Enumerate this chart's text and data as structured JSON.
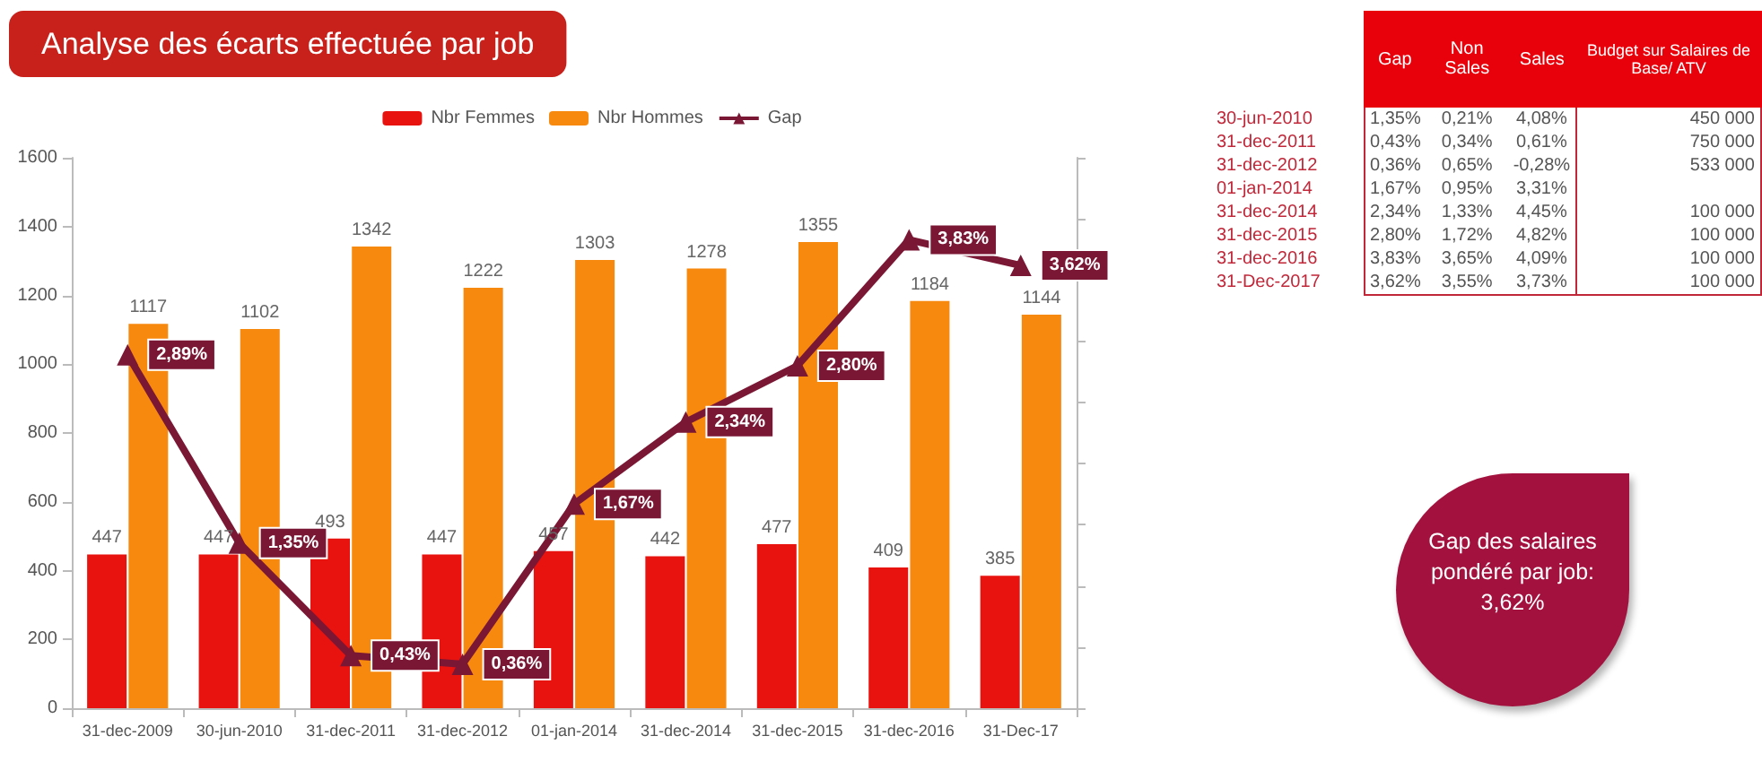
{
  "chart_data": [
    {
      "type": "bar",
      "title": "Analyse des écarts effectuée par job",
      "categories": [
        "31-dec-2009",
        "30-jun-2010",
        "31-dec-2011",
        "31-dec-2012",
        "01-jan-2014",
        "31-dec-2014",
        "31-dec-2015",
        "31-dec-2016",
        "31-Dec-17"
      ],
      "series": [
        {
          "name": "Nbr Femmes",
          "color": "#e8120f",
          "values": [
            447,
            447,
            493,
            447,
            457,
            442,
            477,
            409,
            385
          ]
        },
        {
          "name": "Nbr Hommes",
          "color": "#f7890f",
          "values": [
            1117,
            1102,
            1342,
            1222,
            1303,
            1278,
            1355,
            1184,
            1144
          ]
        },
        {
          "name": "Gap",
          "type": "line",
          "axis": "y2",
          "color": "#7a1735",
          "values": [
            2.89,
            1.35,
            0.43,
            0.36,
            1.67,
            2.34,
            2.8,
            3.83,
            3.62
          ],
          "value_labels": [
            "2,89%",
            "1,35%",
            "0,43%",
            "0,36%",
            "1,67%",
            "2,34%",
            "2,80%",
            "3,83%",
            "3,62%"
          ]
        }
      ],
      "ylim": [
        0,
        1600
      ],
      "yticks": [
        0,
        200,
        400,
        600,
        800,
        1000,
        1200,
        1400,
        1600
      ],
      "y2lim": [
        0,
        4.5
      ],
      "y2ticks": [
        {
          "value": 0,
          "label": null
        },
        {
          "value": 0.5,
          "label": null
        },
        {
          "value": 1,
          "label": null
        },
        {
          "value": 1.5,
          "label": null
        },
        {
          "value": 2,
          "label": null
        },
        {
          "value": 2.5,
          "label": null
        },
        {
          "value": 3,
          "label": null
        },
        {
          "value": 3.5,
          "label": null
        },
        {
          "value": 4,
          "label": null
        },
        {
          "value": 4.5,
          "label": null
        }
      ],
      "data_labels": true,
      "legend": "top",
      "marker": "triangle"
    },
    {
      "type": "other",
      "categories": [
        "Gap",
        "Non Sales",
        "Sales",
        "Budget sur Salaires de Base/ ATV"
      ],
      "y_categories": [
        "30-jun-2010",
        "31-dec-2011",
        "31-dec-2012",
        "01-jan-2014",
        "31-dec-2014",
        "31-dec-2015",
        "31-dec-2016",
        "31-Dec-2017"
      ],
      "cell_labels": [
        [
          "1,35%",
          "0,21%",
          "4,08%",
          "450 000"
        ],
        [
          "0,43%",
          "0,34%",
          "0,61%",
          "750 000"
        ],
        [
          "0,36%",
          "0,65%",
          "-0,28%",
          "533 000"
        ],
        [
          "1,67%",
          "0,95%",
          "3,31%",
          null
        ],
        [
          "2,34%",
          "1,33%",
          "4,45%",
          "100 000"
        ],
        [
          "2,80%",
          "1,72%",
          "4,82%",
          "100 000"
        ],
        [
          "3,83%",
          "3,65%",
          "4,09%",
          "100 000"
        ],
        [
          "3,62%",
          "3,55%",
          "3,73%",
          "100 000"
        ]
      ]
    },
    {
      "type": "other",
      "annotations": [
        "Gap des salaires pondéré par job: 3,62%"
      ]
    }
  ]
}
